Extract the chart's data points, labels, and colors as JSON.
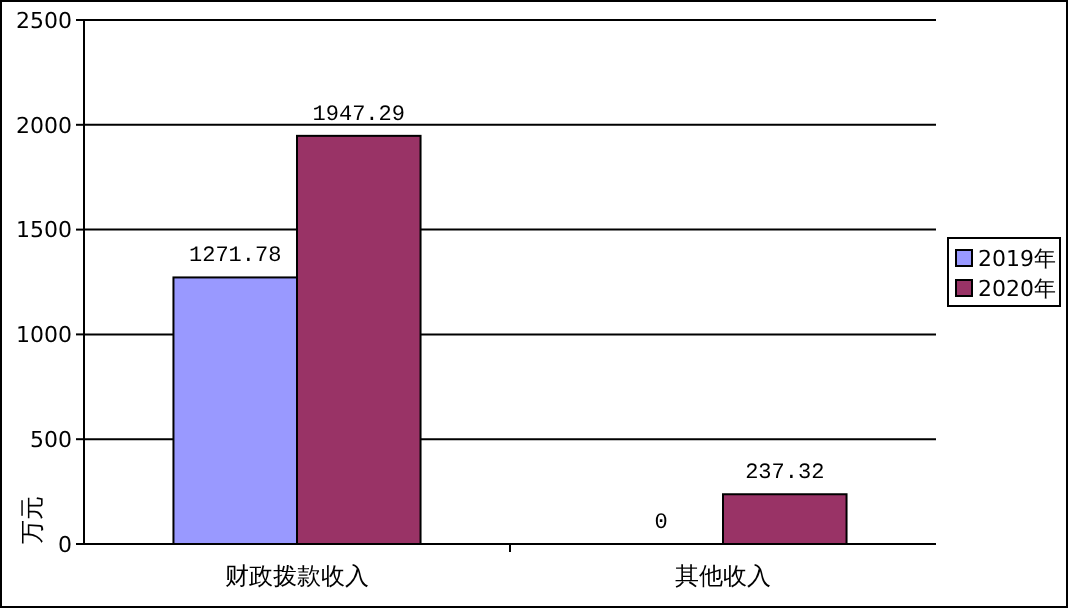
{
  "chart_data": {
    "type": "bar",
    "ylabel": "万元",
    "categories": [
      "财政拨款收入",
      "其他收入"
    ],
    "series": [
      {
        "name": "2019年",
        "color": "#9999ff",
        "values": [
          1271.78,
          0
        ]
      },
      {
        "name": "2020年",
        "color": "#993366",
        "values": [
          1947.29,
          237.32
        ]
      }
    ],
    "value_labels": [
      [
        "1271.78",
        "0"
      ],
      [
        "1947.29",
        "237.32"
      ]
    ],
    "ylim": [
      0,
      2500
    ],
    "yticks": [
      0,
      500,
      1000,
      1500,
      2000,
      2500
    ],
    "grid": "y",
    "legend": "right"
  }
}
